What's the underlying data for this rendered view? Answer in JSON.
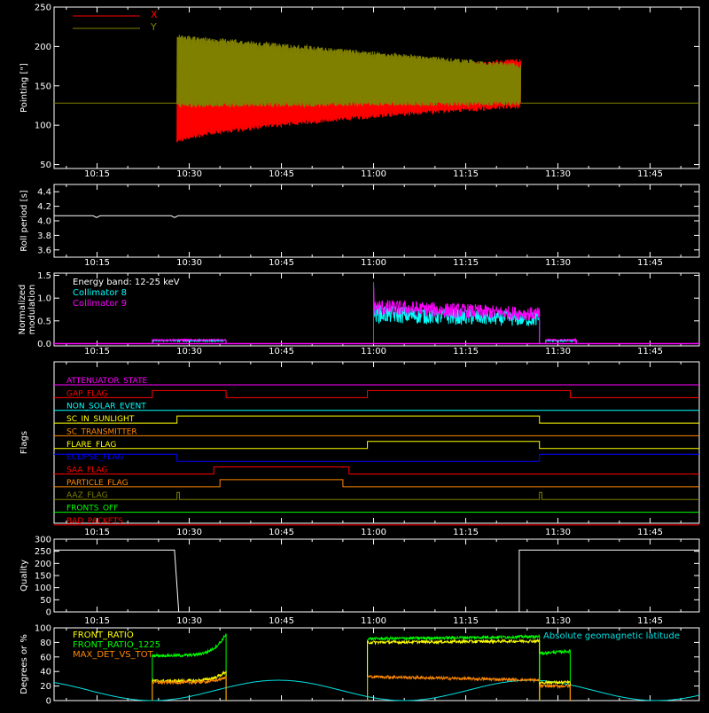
{
  "time_ticks": [
    "10:15",
    "10:30",
    "10:45",
    "11:00",
    "11:15",
    "11:30",
    "11:45"
  ],
  "colors": {
    "background": "#000000",
    "axes": "#ffffff",
    "x": "#ff0000",
    "y": "#808000",
    "collimator8": "#00ffff",
    "collimator9": "#ff00ff",
    "geomag": "#00e0e0",
    "front_ratio": "#ffff00",
    "front_ratio_1225": "#00ff00",
    "max_det": "#ff8800"
  },
  "chart_data": [
    {
      "id": "pointing",
      "type": "line",
      "ylabel": "Pointing [\"]",
      "ylim": [
        45,
        250
      ],
      "yticks": [
        50,
        100,
        150,
        200,
        250
      ],
      "xlim": [
        "10:08",
        "11:53"
      ],
      "legend": "top-left",
      "series": [
        {
          "name": "X",
          "color": "#ff0000",
          "start": "10:28",
          "end": "11:24",
          "low_start": 75,
          "low_end": 122,
          "high_start": 150,
          "high_end": 185
        },
        {
          "name": "Y",
          "color": "#808000",
          "start": "10:28",
          "end": "11:24",
          "low_start": 122,
          "low_end": 125,
          "high_start": 215,
          "high_end": 178
        }
      ],
      "reference_line": 128
    },
    {
      "id": "roll",
      "type": "line",
      "ylabel": "Roll period [s]",
      "ylim": [
        3.5,
        4.5
      ],
      "yticks": [
        3.6,
        3.8,
        4.0,
        4.2,
        4.4
      ],
      "xlim": [
        "10:08",
        "11:53"
      ],
      "series": [
        {
          "name": "",
          "color": "#ffffff",
          "value": 4.07
        }
      ]
    },
    {
      "id": "modulation",
      "type": "line",
      "ylabel": "Normalized modulation",
      "ylim": [
        -0.05,
        1.55
      ],
      "yticks": [
        0.0,
        0.5,
        1.0,
        1.5
      ],
      "xlim": [
        "10:08",
        "11:53"
      ],
      "legend": "top-left",
      "annotation": "Energy band: 12-25 keV",
      "series": [
        {
          "name": "Collimator 8",
          "color": "#00ffff"
        },
        {
          "name": "Collimator 9",
          "color": "#ff00ff"
        }
      ],
      "segments": [
        {
          "start": "10:24",
          "end": "10:36",
          "level": 0.08
        },
        {
          "start": "11:00",
          "end": "11:27",
          "level_start": 0.8,
          "level_end": 0.65,
          "spike": 1.35
        },
        {
          "start": "11:28",
          "end": "11:33",
          "level": 0.08
        }
      ]
    },
    {
      "id": "flags",
      "type": "line",
      "ylabel": "Flags",
      "xlim": [
        "10:08",
        "11:53"
      ],
      "series": [
        {
          "name": "ATTENUATOR_STATE",
          "color": "#ff00ff",
          "transitions": []
        },
        {
          "name": "GAP_FLAG",
          "color": "#ff0000",
          "transitions": [
            "10:24",
            "10:36",
            "10:59",
            "11:32"
          ],
          "initial": 0
        },
        {
          "name": "NON_SOLAR_EVENT",
          "color": "#00ffff",
          "transitions": []
        },
        {
          "name": "SC_IN_SUNLIGHT",
          "color": "#ffff00",
          "transitions": [
            "10:28",
            "11:27"
          ],
          "initial": 0
        },
        {
          "name": "SC_TRANSMITTER",
          "color": "#ff8800",
          "transitions": []
        },
        {
          "name": "FLARE_FLAG",
          "color": "#ffff00",
          "transitions": [
            "10:59",
            "11:27"
          ],
          "initial": 0
        },
        {
          "name": "ECLIPSE_FLAG",
          "color": "#0000ff",
          "transitions": [
            "10:28",
            "11:27"
          ],
          "initial": 1
        },
        {
          "name": "SAA_FLAG",
          "color": "#ff0000",
          "transitions": [
            "10:34",
            "10:56"
          ],
          "initial": 0
        },
        {
          "name": "PARTICLE_FLAG",
          "color": "#ff8800",
          "transitions": [
            "10:35",
            "10:55"
          ],
          "initial": 0
        },
        {
          "name": "AAZ_FLAG",
          "color": "#808000",
          "transitions": [
            "10:28",
            "10:28.4",
            "11:27",
            "11:27.4"
          ],
          "initial": 0
        },
        {
          "name": "FRONTS_OFF",
          "color": "#00ff00",
          "transitions": []
        },
        {
          "name": "BAD_PACKETS",
          "color": "#ff0000",
          "transitions": []
        }
      ]
    },
    {
      "id": "quality",
      "type": "line",
      "ylabel": "Quality",
      "ylim": [
        0,
        300
      ],
      "yticks": [
        0,
        50,
        100,
        150,
        200,
        250,
        300
      ],
      "xlim": [
        "10:08",
        "11:53"
      ],
      "series": [
        {
          "name": "",
          "color": "#ffffff",
          "points": [
            [
              "10:08",
              255
            ],
            [
              "10:27.6",
              255
            ],
            [
              "10:28.3",
              0
            ],
            [
              "11:23.7",
              0
            ],
            [
              "11:23.7",
              255
            ],
            [
              "11:53",
              255
            ]
          ]
        }
      ]
    },
    {
      "id": "ratios",
      "type": "line",
      "ylabel": "Degrees or %",
      "ylim": [
        0,
        100
      ],
      "yticks": [
        0,
        20,
        40,
        60,
        80,
        100
      ],
      "xlim": [
        "10:08",
        "11:53"
      ],
      "legend": "top-left",
      "series": [
        {
          "name": "FRONT_RATIO",
          "color": "#ffff00"
        },
        {
          "name": "FRONT_RATIO_1225",
          "color": "#00ff00"
        },
        {
          "name": "MAX_DET_VS_TOT",
          "color": "#ff8800"
        },
        {
          "name": "Absolute geomagnetic latitude",
          "color": "#00e0e0"
        }
      ],
      "segments": [
        {
          "start": "10:24",
          "end": "10:36",
          "front_ratio": [
            27,
            40
          ],
          "front_ratio_1225": [
            62,
            92
          ],
          "max_det": [
            25,
            32
          ]
        },
        {
          "start": "10:59",
          "end": "11:27",
          "front_ratio": [
            80,
            82
          ],
          "front_ratio_1225": [
            85,
            88
          ],
          "max_det": [
            33,
            28
          ]
        },
        {
          "start": "11:27",
          "end": "11:32",
          "front_ratio": [
            25,
            25
          ],
          "front_ratio_1225": [
            65,
            68
          ],
          "max_det": [
            20,
            20
          ]
        }
      ],
      "geomag": {
        "min": 0,
        "max": 28,
        "minima": [
          "10:24",
          "11:05"
        ],
        "maxima": [
          "10:44",
          "11:26"
        ]
      }
    }
  ]
}
